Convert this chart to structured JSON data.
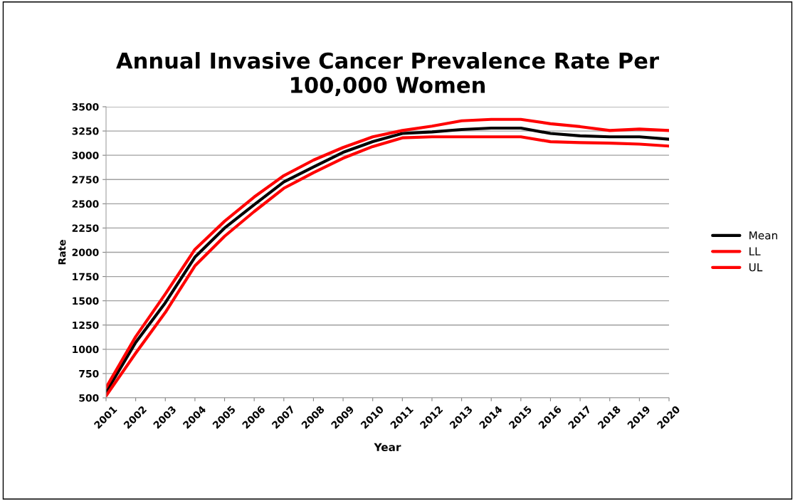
{
  "chart_data": {
    "type": "line",
    "title": "Annual Invasive Cancer Prevalence Rate Per\n100,000 Women",
    "xlabel": "Year",
    "ylabel": "Rate",
    "categories": [
      "2001",
      "2002",
      "2003",
      "2004",
      "2005",
      "2006",
      "2007",
      "2008",
      "2009",
      "2010",
      "2011",
      "2012",
      "2013",
      "2014",
      "2015",
      "2016",
      "2017",
      "2018",
      "2019",
      "2020"
    ],
    "series": [
      {
        "name": "Mean",
        "color": "#000000",
        "values": [
          557,
          1070,
          1480,
          1950,
          2250,
          2490,
          2725,
          2880,
          3030,
          3140,
          3225,
          3240,
          3265,
          3280,
          3280,
          3225,
          3200,
          3190,
          3190,
          3165
        ]
      },
      {
        "name": "LL",
        "color": "#ff0000",
        "values": [
          520,
          960,
          1380,
          1860,
          2165,
          2420,
          2660,
          2820,
          2970,
          3090,
          3180,
          3190,
          3190,
          3190,
          3190,
          3140,
          3130,
          3125,
          3115,
          3095
        ]
      },
      {
        "name": "UL",
        "color": "#ff0000",
        "values": [
          605,
          1130,
          1570,
          2030,
          2320,
          2570,
          2790,
          2950,
          3080,
          3190,
          3255,
          3300,
          3355,
          3370,
          3370,
          3325,
          3295,
          3255,
          3270,
          3255
        ]
      }
    ],
    "ylim": [
      500,
      3500
    ],
    "yticks": [
      500,
      750,
      1000,
      1250,
      1500,
      1750,
      2000,
      2250,
      2500,
      2750,
      3000,
      3250,
      3500
    ],
    "grid": "y",
    "legend": "right",
    "marker": "none",
    "line_style": "solid"
  }
}
